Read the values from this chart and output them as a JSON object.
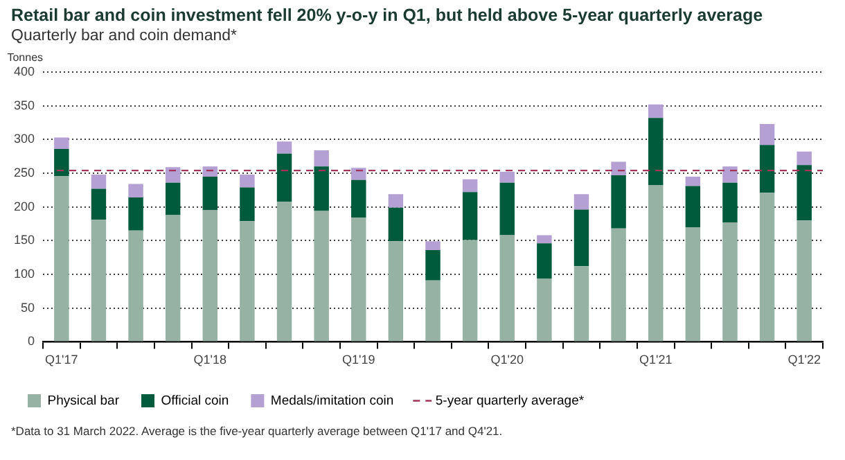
{
  "chart_data": {
    "type": "bar",
    "title": "Retail bar and coin investment fell 20% y-o-y in Q1, but held above 5-year quarterly average",
    "subtitle": "Quarterly bar and coin demand*",
    "ylabel": "Tonnes",
    "categories": [
      "Q1'17",
      null,
      null,
      null,
      "Q1'18",
      null,
      null,
      null,
      "Q1'19",
      null,
      null,
      null,
      "Q1'20",
      null,
      null,
      null,
      "Q1'21",
      null,
      null,
      null,
      "Q1'22"
    ],
    "stacked": true,
    "series": [
      {
        "name": "Physical bar",
        "color": "#96b2a5",
        "values": [
          246,
          181,
          165,
          188,
          195,
          179,
          208,
          194,
          184,
          149,
          91,
          151,
          158,
          94,
          112,
          168,
          232,
          170,
          177,
          221,
          180
        ]
      },
      {
        "name": "Official coin",
        "color": "#005a3c",
        "values": [
          40,
          46,
          49,
          48,
          50,
          50,
          71,
          66,
          56,
          50,
          45,
          71,
          78,
          52,
          84,
          79,
          100,
          61,
          59,
          71,
          82
        ]
      },
      {
        "name": "Medals/imitation coin",
        "color": "#b4a0d2",
        "values": [
          17,
          21,
          20,
          23,
          15,
          19,
          18,
          24,
          18,
          20,
          13,
          19,
          16,
          12,
          23,
          20,
          20,
          14,
          24,
          31,
          20
        ]
      }
    ],
    "ylim": [
      0,
      400
    ],
    "yticks": [
      0,
      50,
      100,
      150,
      200,
      250,
      300,
      350,
      400
    ],
    "grid": "y",
    "legend": "bottom",
    "ref_lines": [
      {
        "axis": "y",
        "value": 254,
        "label": "5-year quarterly average*",
        "color": "#a0345a",
        "line_style": "dashed"
      }
    ],
    "annotations": [
      "*Data to 31 March 2022. Average is the five-year quarterly average between Q1'17 and Q4'21."
    ]
  }
}
